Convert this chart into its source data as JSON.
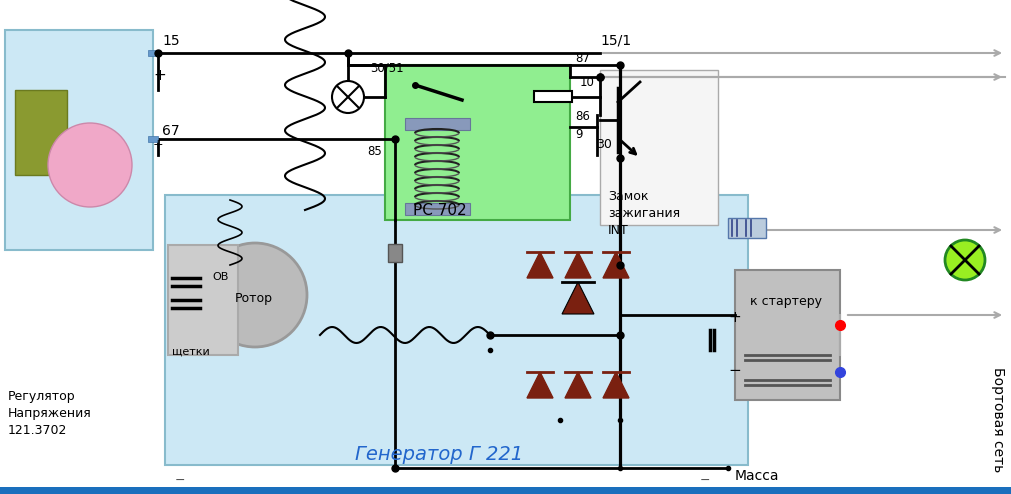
{
  "bg_color": "#ffffff",
  "gen_bg": "#cce8f5",
  "gen_edge": "#88bbcc",
  "reg_bg": "#cce8f5",
  "relay_bg": "#90EE90",
  "relay_edge": "#44aa44",
  "ignition_bg": "#f5f5f5",
  "ignition_edge": "#aaaaaa",
  "battery_bg": "#c0c0c0",
  "battery_edge": "#888888",
  "bottom_bar": "#1a6fbd",
  "wire_black": "#000000",
  "wire_gray": "#aaaaaa",
  "diode_color": "#7a2010",
  "green_circle_fill": "#99ee22",
  "green_circle_edge": "#228822",
  "label_15": "15",
  "label_15_1": "15/1",
  "label_67": "67",
  "label_30_51": "30/51",
  "label_87": "87",
  "label_10": "10",
  "label_86": "86",
  "label_9": "9",
  "label_85": "85",
  "label_30": "30",
  "label_plus": "+",
  "label_minus": "−",
  "label_rc702": "РС 702",
  "label_reg": "Регулятор\nНапряжения\n121.3702",
  "label_zamok": "Замок\nзажигания\nINT",
  "label_gen": "Генератор Г 221",
  "label_rotor": "Ротор",
  "label_ov": "ОВ",
  "label_shchetki": "щетки",
  "label_massa": "Масса",
  "label_k_starteru": "к стартеру",
  "label_bort": "Бортовая сеть"
}
